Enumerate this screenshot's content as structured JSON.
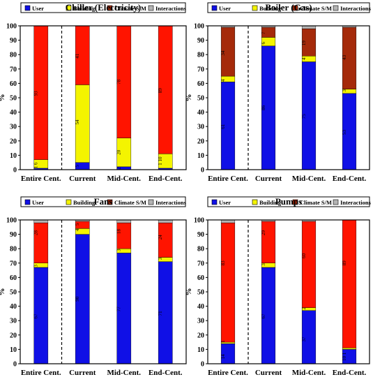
{
  "legend_labels": [
    "User",
    "Building",
    "Climate S/M",
    "Interactions"
  ],
  "colors": {
    "User": "#1010e6",
    "Building": "#f4f400",
    "Climate S/M": "#a52a0a",
    "Interactions": "#b4b4b4",
    "residual": "#ff1400",
    "axis": "#000000"
  },
  "chart_data": [
    {
      "type": "bar",
      "stacked": true,
      "title": "Chiller (Electricity)",
      "ylabel": "%",
      "ylim": [
        0,
        100
      ],
      "yticks": [
        0,
        10,
        20,
        30,
        40,
        50,
        60,
        70,
        80,
        90,
        100
      ],
      "categories": [
        "Entire Cent.",
        "Current",
        "Mid-Cent.",
        "End-Cent."
      ],
      "divider_after_category": 0,
      "series": [
        {
          "name": "User",
          "values": [
            1,
            5,
            2,
            1
          ]
        },
        {
          "name": "Building",
          "values": [
            6,
            54,
            20,
            10
          ]
        },
        {
          "name": "",
          "values": [
            93,
            41,
            78,
            89
          ]
        }
      ],
      "data_labels": [
        {
          "category": 0,
          "y": 3,
          "text": "1 6"
        },
        {
          "category": 0,
          "y": 53,
          "text": "93"
        },
        {
          "category": 1,
          "y": 2.5,
          "text": "5"
        },
        {
          "category": 1,
          "y": 33,
          "text": "54"
        },
        {
          "category": 1,
          "y": 79,
          "text": "41"
        },
        {
          "category": 2,
          "y": 1,
          "text": "2"
        },
        {
          "category": 2,
          "y": 12,
          "text": "20"
        },
        {
          "category": 2,
          "y": 61,
          "text": "78"
        },
        {
          "category": 3,
          "y": 6,
          "text": "1 10"
        },
        {
          "category": 3,
          "y": 55,
          "text": "89"
        }
      ]
    },
    {
      "type": "bar",
      "stacked": true,
      "title": "Boiler (Gas)",
      "ylabel": "%",
      "ylim": [
        0,
        100
      ],
      "yticks": [
        0,
        10,
        20,
        30,
        40,
        50,
        60,
        70,
        80,
        90,
        100
      ],
      "categories": [
        "Entire Cent.",
        "Current",
        "Mid-Cent.",
        "End-Cent."
      ],
      "divider_after_category": 0,
      "series": [
        {
          "name": "User",
          "values": [
            61,
            86,
            75,
            53
          ]
        },
        {
          "name": "Building",
          "values": [
            4,
            6,
            4,
            3
          ]
        },
        {
          "name": "Climate S/M",
          "values": [
            34,
            7,
            19,
            43
          ]
        }
      ],
      "data_labels": [
        {
          "category": 0,
          "y": 30,
          "text": "61"
        },
        {
          "category": 0,
          "y": 62,
          "text": "4"
        },
        {
          "category": 0,
          "y": 81,
          "text": "34"
        },
        {
          "category": 1,
          "y": 43,
          "text": "86"
        },
        {
          "category": 1,
          "y": 88,
          "text": "6"
        },
        {
          "category": 1,
          "y": 95,
          "text": "7"
        },
        {
          "category": 2,
          "y": 37,
          "text": "75"
        },
        {
          "category": 2,
          "y": 77,
          "text": "4"
        },
        {
          "category": 2,
          "y": 88,
          "text": "19"
        },
        {
          "category": 3,
          "y": 26,
          "text": "53"
        },
        {
          "category": 3,
          "y": 55,
          "text": "3"
        },
        {
          "category": 3,
          "y": 78,
          "text": "43"
        }
      ]
    },
    {
      "type": "bar",
      "stacked": true,
      "title": "Fans",
      "ylabel": "%",
      "ylim": [
        0,
        100
      ],
      "yticks": [
        0,
        10,
        20,
        30,
        40,
        50,
        60,
        70,
        80,
        90,
        100
      ],
      "categories": [
        "Entire Cent.",
        "Current",
        "Mid-Cent.",
        "End-Cent."
      ],
      "divider_after_category": 0,
      "series": [
        {
          "name": "User",
          "values": [
            67,
            90,
            77,
            71
          ]
        },
        {
          "name": "Building",
          "values": [
            3,
            4,
            3,
            3
          ]
        },
        {
          "name": "",
          "values": [
            28,
            5,
            18,
            24
          ]
        }
      ],
      "data_labels": [
        {
          "category": 0,
          "y": 33,
          "text": "67"
        },
        {
          "category": 0,
          "y": 68,
          "text": "3"
        },
        {
          "category": 0,
          "y": 91,
          "text": "28"
        },
        {
          "category": 1,
          "y": 45,
          "text": "90"
        },
        {
          "category": 1,
          "y": 93,
          "text": "4"
        },
        {
          "category": 1,
          "y": 97,
          "text": "5"
        },
        {
          "category": 2,
          "y": 38,
          "text": "77"
        },
        {
          "category": 2,
          "y": 79,
          "text": "3"
        },
        {
          "category": 2,
          "y": 92,
          "text": "18"
        },
        {
          "category": 3,
          "y": 35,
          "text": "71"
        },
        {
          "category": 3,
          "y": 73,
          "text": "3"
        },
        {
          "category": 3,
          "y": 88,
          "text": "24"
        }
      ]
    },
    {
      "type": "bar",
      "stacked": true,
      "title": "Pumps",
      "ylabel": "%",
      "ylim": [
        0,
        100
      ],
      "yticks": [
        0,
        10,
        20,
        30,
        40,
        50,
        60,
        70,
        80,
        90,
        100
      ],
      "categories": [
        "Entire Cent.",
        "Current",
        "Mid-Cent.",
        "End-Cent."
      ],
      "divider_after_category": 0,
      "series": [
        {
          "name": "User",
          "values": [
            14,
            67,
            37,
            10
          ]
        },
        {
          "name": "Building",
          "values": [
            1,
            3,
            2,
            1
          ]
        },
        {
          "name": "",
          "values": [
            83,
            29,
            60,
            89
          ]
        }
      ],
      "data_labels": [
        {
          "category": 0,
          "y": 5,
          "text": "14"
        },
        {
          "category": 0,
          "y": 15.5,
          "text": "1"
        },
        {
          "category": 0,
          "y": 70,
          "text": "83"
        },
        {
          "category": 1,
          "y": 33,
          "text": "67"
        },
        {
          "category": 1,
          "y": 69,
          "text": "3"
        },
        {
          "category": 1,
          "y": 91,
          "text": "29"
        },
        {
          "category": 2,
          "y": 17,
          "text": "37"
        },
        {
          "category": 2,
          "y": 38.5,
          "text": "2"
        },
        {
          "category": 2,
          "y": 75,
          "text": "60"
        },
        {
          "category": 3,
          "y": 5,
          "text": "10 1"
        },
        {
          "category": 3,
          "y": 70,
          "text": "89"
        }
      ]
    }
  ]
}
